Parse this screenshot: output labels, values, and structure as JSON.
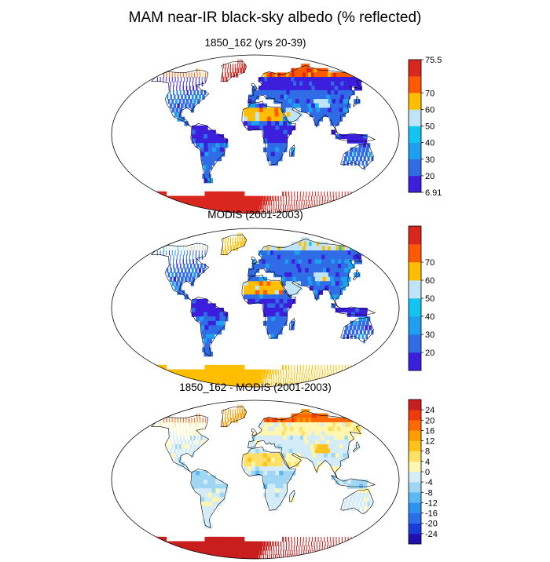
{
  "figure": {
    "title": "MAM near-IR black-sky albedo (% reflected)"
  },
  "panels": [
    {
      "title": "1850_162 (yrs 20-39)",
      "color_scale": [
        "#3b1fdc",
        "#2f6ce6",
        "#1f9ff0",
        "#13c3f0",
        "#bfe4f8",
        "#ffbf00",
        "#ff5a00",
        "#d9271f"
      ],
      "colorbar_labels": [
        "6.91",
        "20",
        "30",
        "40",
        "50",
        "60",
        "70",
        "75.5"
      ],
      "legend_label_style": "min-max with ticks"
    },
    {
      "title": "MODIS (2001-2003)",
      "color_scale": [
        "#3b1fdc",
        "#2f6ce6",
        "#1f9ff0",
        "#13c3f0",
        "#bfe4f8",
        "#ffbf00",
        "#ff5a00",
        "#d9271f"
      ],
      "colorbar_labels": [
        "20",
        "30",
        "40",
        "50",
        "60",
        "70"
      ]
    },
    {
      "title": "1850_162 - MODIS (2001-2003)",
      "color_scale": [
        "#2010b0",
        "#1c3ad8",
        "#2a6de8",
        "#2e93f0",
        "#5cb8f2",
        "#9fd6f4",
        "#d3ecf7",
        "#fff7b0",
        "#ffe066",
        "#ffc21a",
        "#ff9d00",
        "#ff6a00",
        "#f03a0c",
        "#c81e1e"
      ],
      "colorbar_labels": [
        "-24",
        "-20",
        "-16",
        "-12",
        "-8",
        "-4",
        "0",
        "4",
        "8",
        "12",
        "16",
        "20",
        "24"
      ]
    }
  ]
}
